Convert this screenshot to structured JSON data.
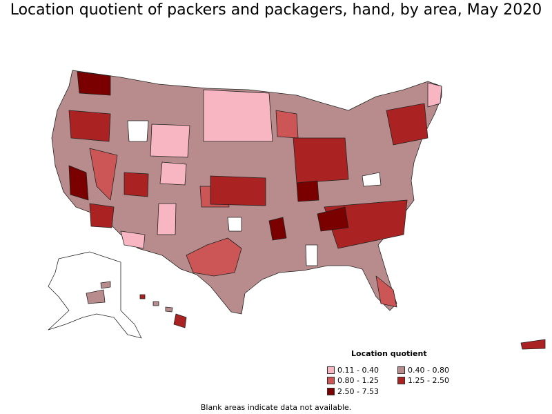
{
  "title": "Location quotient of packers and packagers, hand, by area, May 2020",
  "legend": {
    "title": "Location quotient",
    "items": [
      {
        "label": "0.11 - 0.40",
        "color": "#f7b6c1"
      },
      {
        "label": "0.40 - 0.80",
        "color": "#b88c8c"
      },
      {
        "label": "0.80 - 1.25",
        "color": "#cc5555"
      },
      {
        "label": "1.25 - 2.50",
        "color": "#aa2222"
      },
      {
        "label": "2.50 - 7.53",
        "color": "#7a0000"
      }
    ]
  },
  "note": "Blank areas indicate data not available."
}
